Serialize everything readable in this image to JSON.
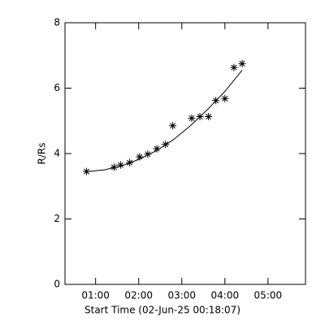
{
  "chart_data": {
    "type": "scatter",
    "x_label": "Start Time (02-Jun-25 00:18:07)",
    "y_label": "R/Rs",
    "x": [
      0.79,
      1.43,
      1.58,
      1.79,
      2.02,
      2.21,
      2.42,
      2.62,
      2.79,
      3.23,
      3.42,
      3.62,
      3.79,
      4.0,
      4.21,
      4.4
    ],
    "values": [
      3.45,
      3.58,
      3.65,
      3.72,
      3.9,
      3.98,
      4.15,
      4.28,
      4.85,
      5.08,
      5.13,
      5.13,
      5.62,
      5.68,
      6.63,
      6.75
    ],
    "color": "#000000",
    "fit": {
      "x": [
        0.8,
        1.2,
        1.6,
        2.0,
        2.4,
        2.8,
        3.2,
        3.6,
        4.0,
        4.4
      ],
      "y": [
        3.45,
        3.5,
        3.62,
        3.82,
        4.08,
        4.42,
        4.85,
        5.35,
        5.9,
        6.55
      ]
    },
    "xlim": [
      0.29,
      5.87
    ],
    "xticks": [
      {
        "value": 1,
        "label": "01:00"
      },
      {
        "value": 2,
        "label": "02:00"
      },
      {
        "value": 3,
        "label": "03:00"
      },
      {
        "value": 4,
        "label": "04:00"
      },
      {
        "value": 5,
        "label": "05:00"
      }
    ],
    "ylim": [
      0,
      8
    ],
    "yticks": [
      0,
      2,
      4,
      6,
      8
    ]
  }
}
